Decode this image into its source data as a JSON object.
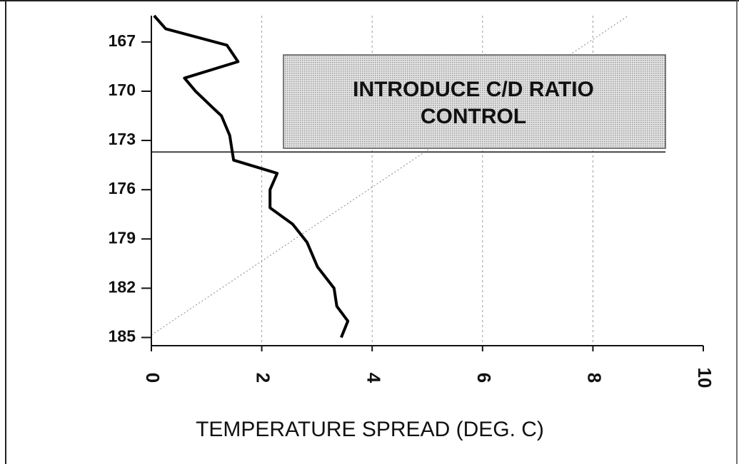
{
  "chart_data": {
    "type": "line",
    "xlabel": "TEMPERATURE SPREAD (DEG. C)",
    "xlim": [
      0,
      10
    ],
    "xticks": [
      0,
      2,
      4,
      6,
      8,
      10
    ],
    "ylim": [
      165.4,
      185.5
    ],
    "yticks": [
      167,
      170,
      173,
      176,
      179,
      182,
      185
    ],
    "y_reversed": true,
    "grid": true,
    "color": "#000000",
    "values": [
      0.05,
      0.26,
      1.37,
      1.57,
      0.6,
      0.8,
      1.11,
      1.27,
      1.42,
      1.49,
      2.28,
      2.15,
      2.15,
      2.56,
      2.82,
      3.01,
      3.31,
      3.36,
      3.56,
      3.44
    ],
    "y": [
      165.4,
      166.2,
      167.2,
      168.2,
      169.2,
      170,
      171,
      171.5,
      172.7,
      174.2,
      175,
      176,
      177.1,
      178.1,
      179.2,
      180.7,
      182,
      183.1,
      184,
      185
    ],
    "annotation": {
      "lines": [
        "INTRODUCE C/D RATIO",
        "CONTROL"
      ],
      "y": 173.7
    }
  }
}
